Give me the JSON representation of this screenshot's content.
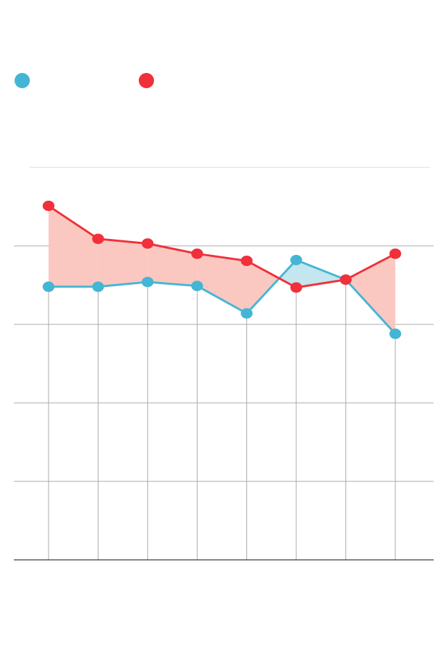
{
  "chart_data": {
    "type": "line",
    "categories": [
      null,
      null,
      null,
      null,
      null,
      null,
      null,
      null
    ],
    "series": [
      {
        "color": "#45b5d6",
        "fill_color": "#c3e6ef",
        "values": [
          3.48,
          3.48,
          3.54,
          3.49,
          3.14,
          3.82,
          3.57,
          2.88
        ]
      },
      {
        "color": "#f0303a",
        "fill_color": "#fac8c1",
        "values": [
          4.51,
          4.09,
          4.03,
          3.9,
          3.81,
          3.47,
          3.57,
          3.9
        ]
      }
    ],
    "ylim": [
      0,
      5
    ],
    "yticks": [
      0,
      1,
      2,
      3,
      4,
      5
    ],
    "grid": true
  }
}
